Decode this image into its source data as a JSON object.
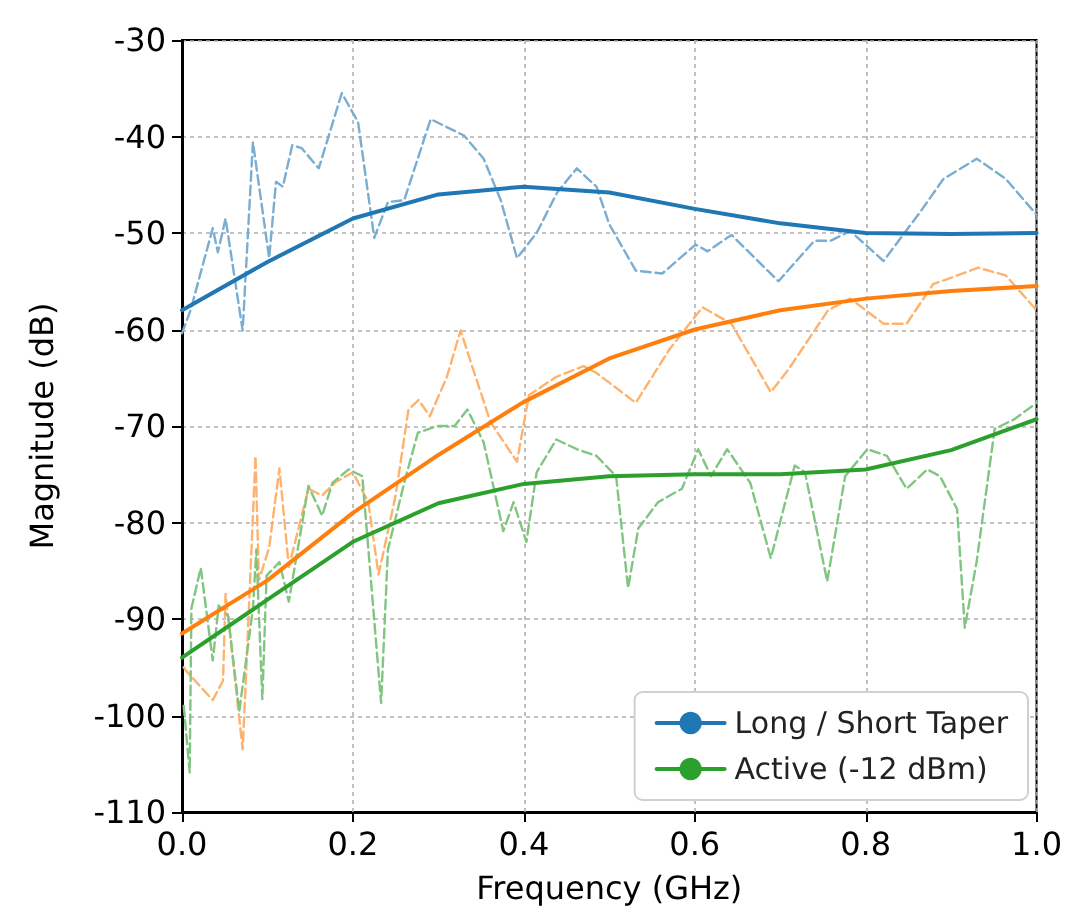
{
  "chart_data": {
    "type": "line",
    "xlabel": "Frequency (GHz)",
    "ylabel": "Magnitude (dB)",
    "xlim": [
      0,
      1
    ],
    "xticks": [
      {
        "value": 0,
        "label": "0.0"
      },
      {
        "value": 0.2,
        "label": "0.2"
      },
      {
        "value": 0.4,
        "label": "0.4"
      },
      {
        "value": 0.6,
        "label": "0.6"
      },
      {
        "value": 0.8,
        "label": "0.8"
      },
      {
        "value": 1,
        "label": "1.0"
      }
    ],
    "ylim": [
      -110,
      -30
    ],
    "yticks": [
      -110,
      -100,
      -90,
      -80,
      -70,
      -60,
      -50,
      -40,
      -30
    ],
    "grid": true,
    "legend": "bottom right",
    "marker": "none",
    "series": [
      {
        "color": "#79add2",
        "line_style": "dashed",
        "x": [
          0.0,
          0.01,
          0.036,
          0.042,
          0.051,
          0.071,
          0.083,
          0.102,
          0.11,
          0.118,
          0.129,
          0.14,
          0.16,
          0.187,
          0.206,
          0.225,
          0.241,
          0.26,
          0.291,
          0.33,
          0.353,
          0.373,
          0.392,
          0.415,
          0.439,
          0.462,
          0.485,
          0.5,
          0.531,
          0.562,
          0.601,
          0.615,
          0.643,
          0.698,
          0.74,
          0.759,
          0.782,
          0.821,
          0.864,
          0.891,
          0.93,
          0.964,
          1.0
        ],
        "values": [
          -60.4,
          -58,
          -49.5,
          -52,
          -48.5,
          -60.1,
          -40.6,
          -52.6,
          -44.7,
          -45.2,
          -40.9,
          -41.2,
          -43.3,
          -35.5,
          -38.5,
          -50.5,
          -46.8,
          -46.6,
          -38.2,
          -39.9,
          -42.3,
          -46.6,
          -52.6,
          -50,
          -45.8,
          -43.3,
          -45.2,
          -49.1,
          -53.9,
          -54.2,
          -51.2,
          -51.9,
          -50.2,
          -55,
          -50.8,
          -50.8,
          -49.8,
          -52.9,
          -47.8,
          -44.4,
          -42.3,
          -44.4,
          -48.1
        ]
      },
      {
        "color": "#ffb26e",
        "line_style": "dashed",
        "x": [
          0.002,
          0.006,
          0.036,
          0.048,
          0.051,
          0.071,
          0.075,
          0.086,
          0.09,
          0.102,
          0.114,
          0.125,
          0.148,
          0.164,
          0.18,
          0.2,
          0.218,
          0.23,
          0.25,
          0.265,
          0.277,
          0.29,
          0.31,
          0.326,
          0.341,
          0.361,
          0.392,
          0.406,
          0.438,
          0.47,
          0.485,
          0.531,
          0.57,
          0.609,
          0.643,
          0.689,
          0.71,
          0.756,
          0.782,
          0.821,
          0.848,
          0.879,
          0.932,
          0.964,
          1.0
        ],
        "values": [
          -95,
          -95.5,
          -98.4,
          -96.4,
          -87.4,
          -103.5,
          -95.7,
          -73.1,
          -86,
          -82.6,
          -74.4,
          -84.6,
          -76.5,
          -77.2,
          -75.8,
          -74.8,
          -77.9,
          -85.4,
          -77.2,
          -68.3,
          -67.3,
          -69,
          -64.9,
          -60.1,
          -64.2,
          -69.6,
          -73.7,
          -66.8,
          -64.9,
          -63.8,
          -64.5,
          -67.6,
          -62.1,
          -57.7,
          -59.4,
          -66.5,
          -64.1,
          -58,
          -56.8,
          -59.4,
          -59.4,
          -55.3,
          -53.6,
          -54.4,
          -58
        ]
      },
      {
        "color": "#80c580",
        "line_style": "dashed",
        "x": [
          0.002,
          0.009,
          0.011,
          0.022,
          0.036,
          0.043,
          0.054,
          0.067,
          0.083,
          0.087,
          0.094,
          0.099,
          0.114,
          0.125,
          0.148,
          0.164,
          0.176,
          0.195,
          0.211,
          0.233,
          0.241,
          0.26,
          0.276,
          0.299,
          0.319,
          0.334,
          0.353,
          0.376,
          0.388,
          0.403,
          0.415,
          0.438,
          0.462,
          0.485,
          0.508,
          0.522,
          0.534,
          0.557,
          0.585,
          0.604,
          0.619,
          0.638,
          0.665,
          0.689,
          0.717,
          0.729,
          0.755,
          0.776,
          0.802,
          0.825,
          0.848,
          0.872,
          0.887,
          0.907,
          0.916,
          0.93,
          0.951,
          0.974,
          1.0
        ],
        "values": [
          -99,
          -105.9,
          -88.9,
          -84.7,
          -94.3,
          -88.6,
          -89.7,
          -99.6,
          -88.9,
          -82.8,
          -98.3,
          -85.5,
          -84.1,
          -88.2,
          -76.2,
          -79.3,
          -75.9,
          -74.5,
          -75.2,
          -98.7,
          -82.8,
          -75.9,
          -70.7,
          -70,
          -70,
          -68.3,
          -71.7,
          -80.9,
          -77.9,
          -82,
          -74.8,
          -71.4,
          -72.4,
          -73.1,
          -75.2,
          -86.8,
          -80.6,
          -77.9,
          -76.5,
          -72.4,
          -75.2,
          -72.4,
          -75.9,
          -83.7,
          -74.1,
          -74.8,
          -86.1,
          -75.2,
          -72.4,
          -73.1,
          -76.5,
          -74.5,
          -75.2,
          -78.6,
          -90.9,
          -84,
          -70.3,
          -69.3,
          -67.6
        ]
      },
      {
        "name": "Long / Short Taper",
        "color": "#1f77b4",
        "line_style": "solid",
        "x": [
          0,
          0.1,
          0.2,
          0.3,
          0.4,
          0.5,
          0.6,
          0.7,
          0.8,
          0.9,
          1.0
        ],
        "values": [
          -58,
          -53,
          -48.5,
          -46,
          -45.2,
          -45.8,
          -47.5,
          -49,
          -50,
          -50.1,
          -50
        ]
      },
      {
        "color": "#ff7f0e",
        "line_style": "solid",
        "x": [
          0,
          0.1,
          0.2,
          0.3,
          0.4,
          0.5,
          0.6,
          0.7,
          0.8,
          0.9,
          1.0
        ],
        "values": [
          -91.5,
          -86,
          -79,
          -73,
          -67.5,
          -63,
          -60,
          -58,
          -56.8,
          -56,
          -55.5
        ]
      },
      {
        "name": "Active (-12 dBm)",
        "color": "#2ca02c",
        "line_style": "solid",
        "x": [
          0,
          0.1,
          0.2,
          0.3,
          0.4,
          0.5,
          0.6,
          0.7,
          0.8,
          0.9,
          1.0
        ],
        "values": [
          -94,
          -88,
          -82,
          -78,
          -76,
          -75.2,
          -75,
          -75,
          -74.5,
          -72.5,
          -69.3
        ]
      }
    ]
  }
}
